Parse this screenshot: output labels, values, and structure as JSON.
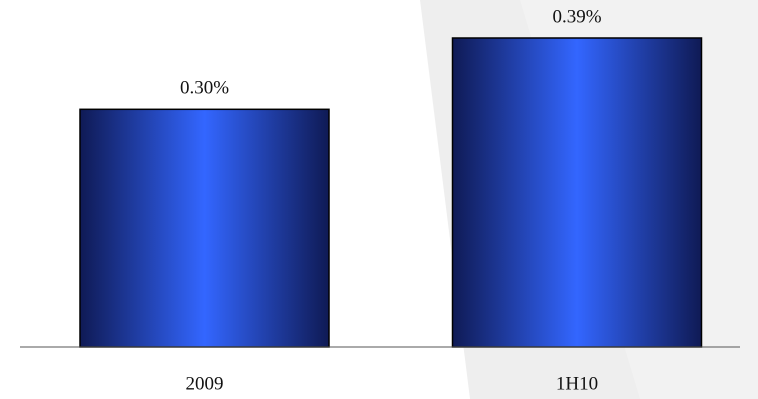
{
  "chart_data": {
    "type": "bar",
    "categories": [
      "2009",
      "1H10"
    ],
    "values": [
      0.3,
      0.39
    ],
    "value_labels": [
      "0.30%",
      "0.39%"
    ],
    "color": "#3366ff"
  }
}
